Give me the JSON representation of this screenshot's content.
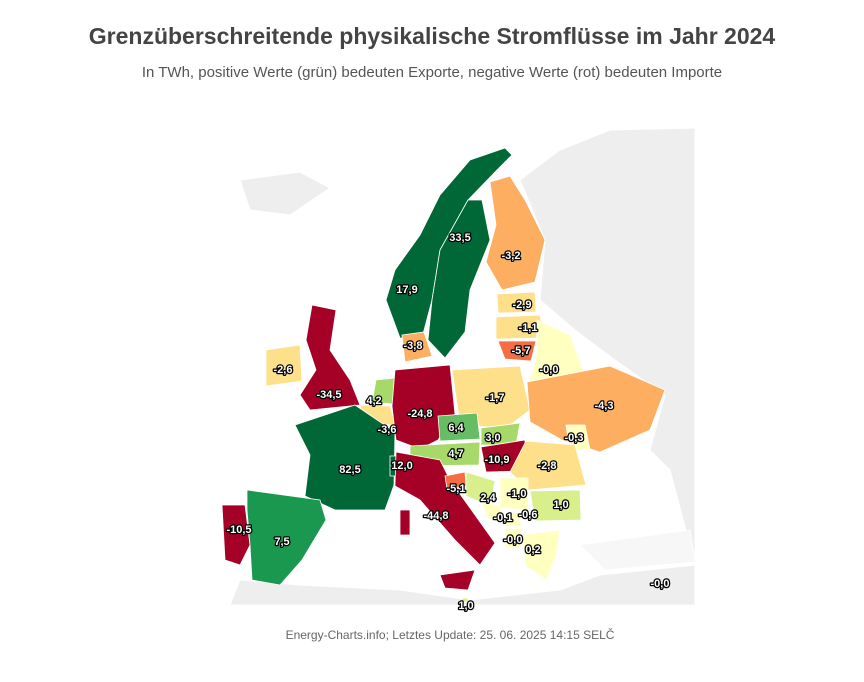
{
  "chart_data": {
    "type": "choropleth",
    "title": "Grenzüberschreitende physikalische Stromflüsse im Jahr 2024",
    "subtitle": "In TWh, positive Werte (grün) bedeuten Exporte, negative Werte (rot) bedeuten Importe",
    "source": "Energy-Charts.info; Letztes Update: 25. 06. 2025 14:15 SELČ",
    "values": [
      17.9,
      33.5,
      -3.2,
      -2.9,
      -1.1,
      -5.7,
      -0.0,
      -3.8,
      -2.6,
      -34.5,
      4.2,
      -3.6,
      -24.8,
      -1.7,
      -4.3,
      6.4,
      3.0,
      -0.3,
      4.7,
      -10.9,
      -2.8,
      82.5,
      12.0,
      -44.8,
      -5.1,
      2.4,
      -1.0,
      -0.1,
      -0.6,
      1.0,
      -0.0,
      0.2,
      -10.5,
      7.5,
      -0.0,
      1.0
    ],
    "value_labels": [
      "17,9",
      "33,5",
      "-3,2",
      "-2,9",
      "-1,1",
      "-5,7",
      "-0,0",
      "-3,8",
      "-2,6",
      "-34,5",
      "4,2",
      "-3,6",
      "-24,8",
      "-1,7",
      "-4,3",
      "6,4",
      "3,0",
      "-0,3",
      "4,7",
      "-10,9",
      "-2,8",
      "82,5",
      "12,0",
      "-44,8",
      "-5,1",
      "2,4",
      "-1,0",
      "-0,1",
      "-0,6",
      "1,0",
      "-0,0",
      "0,2",
      "-10,5",
      "7,5",
      "-0,0",
      "1,0"
    ],
    "colors": [
      "#006837",
      "#006837",
      "#fdae61",
      "#fee08b",
      "#fee08b",
      "#f46d43",
      "#ffffbf",
      "#fdae61",
      "#fee08b",
      "#a50026",
      "#a6d96a",
      "#fee08b",
      "#a50026",
      "#fee08b",
      "#fdae61",
      "#66bd63",
      "#a6d96a",
      "#ffffbf",
      "#a6d96a",
      "#a50026",
      "#fee08b",
      "#006837",
      "#006837",
      "#a50026",
      "#f46d43",
      "#d9ef8b",
      "#ffffbf",
      "#ffffbf",
      "#ffffbf",
      "#d9ef8b",
      "#ffffbf",
      "#ffffbf",
      "#a50026",
      "#1a9850",
      "#f7f7f7",
      "#d9ef8b"
    ]
  }
}
